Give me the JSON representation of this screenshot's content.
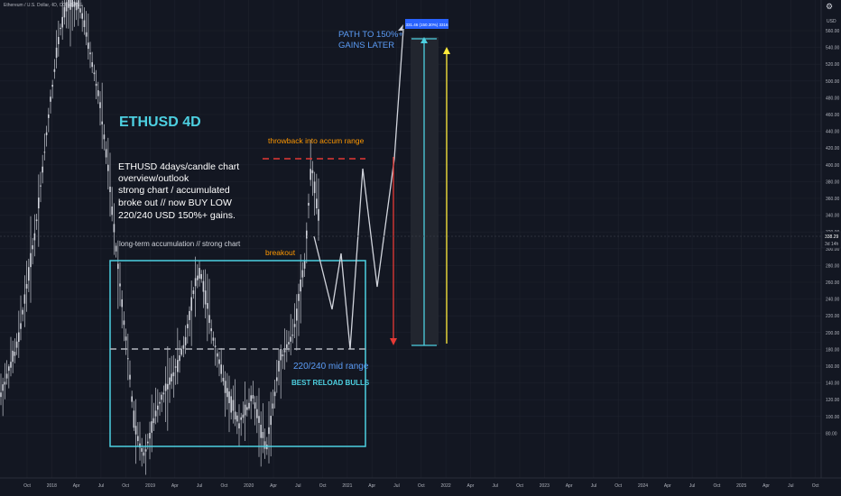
{
  "chart": {
    "symbol_label": "Ethereum / U.S. Dollar, 4D, COINBASE",
    "colors": {
      "background": "#131722",
      "candle": "#d1d4dc",
      "grid": "#1e222d",
      "axis_text": "#b2b5be",
      "cyan": "#4dd0e1",
      "orange": "#ff9800",
      "red": "#e53935",
      "yellow": "#ffeb3b",
      "blue_text": "#5b9cf6",
      "white": "#ffffff"
    }
  },
  "price_axis": {
    "ticks": [
      "560.00",
      "540.00",
      "520.00",
      "500.00",
      "480.00",
      "460.00",
      "440.00",
      "420.00",
      "400.00",
      "380.00",
      "360.00",
      "340.00",
      "320.00",
      "300.00",
      "280.00",
      "260.00",
      "240.00",
      "220.00",
      "200.00",
      "180.00",
      "160.00",
      "140.00",
      "120.00",
      "100.00",
      "80.00"
    ],
    "current_price": "338.29",
    "countdown": "3d 14h",
    "top_label": "USD"
  },
  "time_axis": {
    "ticks": [
      "Oct",
      "2018",
      "Apr",
      "Jul",
      "Oct",
      "2019",
      "Apr",
      "Jul",
      "Oct",
      "2020",
      "Apr",
      "Jul",
      "Oct",
      "2021",
      "Apr",
      "Jul",
      "Oct",
      "2022",
      "Apr",
      "Jul",
      "Oct",
      "2023",
      "Apr",
      "Jul",
      "Oct",
      "2024",
      "Apr",
      "Jul",
      "Oct",
      "2025",
      "Apr",
      "Jul",
      "Oct"
    ]
  },
  "annotations": {
    "title": "ETHUSD 4D",
    "description_lines": [
      "ETHUSD 4days/candle chart",
      "overview/outlook",
      "strong chart / accumulated",
      "broke out // now BUY LOW",
      "220/240 USD 150%+ gains."
    ],
    "accumulation_note": "long-term accumulation // strong chart",
    "breakout_label": "breakout",
    "throwback_label": "throwback into accum range",
    "path_label_lines": [
      "PATH TO 150%+",
      "GAINS LATER"
    ],
    "mid_range_label": "220/240 mid range",
    "reload_label": "BEST RELOAD BULLS",
    "measure_label": "331.46 (150.30%) 3316"
  }
}
